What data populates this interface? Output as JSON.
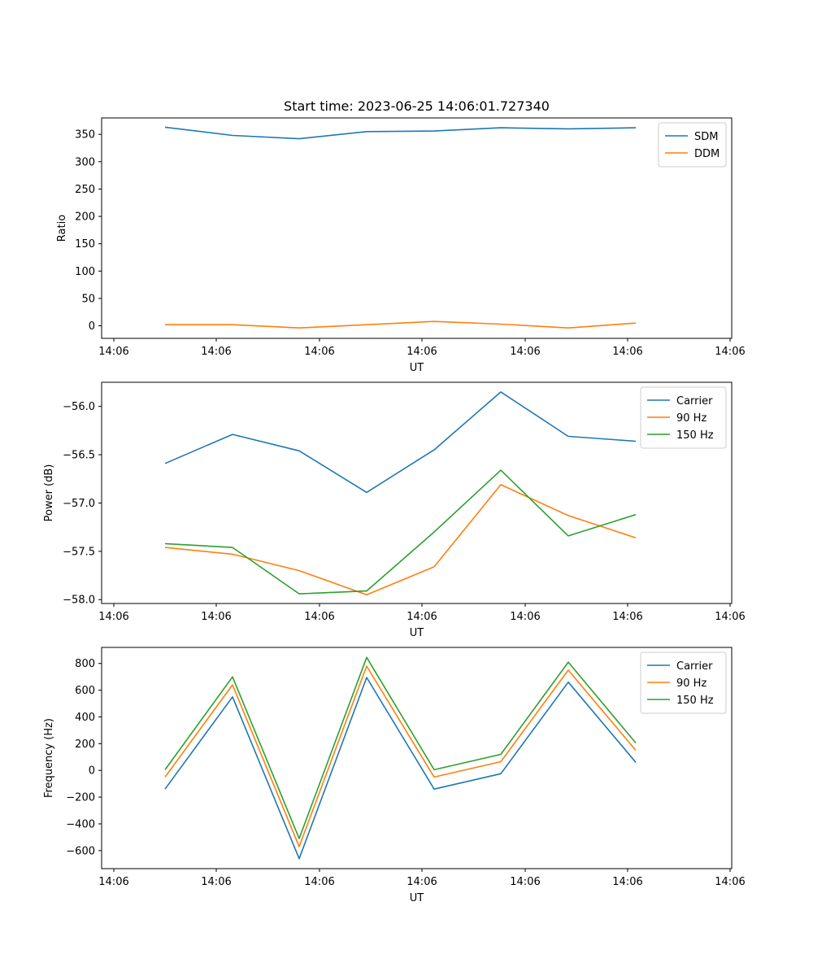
{
  "chart_data": [
    {
      "type": "line",
      "title": "Start time: 2023-06-25 14:06:01.727340",
      "xlabel": "UT",
      "ylabel": "Ratio",
      "x_tick_labels": [
        "14:06",
        "14:06",
        "14:06",
        "14:06",
        "14:06",
        "14:06",
        "14:06"
      ],
      "y_ticks": [
        0,
        50,
        100,
        150,
        200,
        250,
        300,
        350
      ],
      "ylim": [
        -23,
        380
      ],
      "legend_position": "upper right",
      "series": [
        {
          "name": "SDM",
          "color": "#1f77b4",
          "values": [
            363,
            348,
            342,
            355,
            356,
            362,
            360,
            362
          ]
        },
        {
          "name": "DDM",
          "color": "#ff7f0e",
          "values": [
            2,
            2,
            -4,
            2,
            8,
            3,
            -4,
            5
          ]
        }
      ]
    },
    {
      "type": "line",
      "title": "",
      "xlabel": "UT",
      "ylabel": "Power (dB)",
      "x_tick_labels": [
        "14:06",
        "14:06",
        "14:06",
        "14:06",
        "14:06",
        "14:06",
        "14:06"
      ],
      "y_ticks": [
        -58.0,
        -57.5,
        -57.0,
        -56.5,
        -56.0
      ],
      "y_tick_labels": [
        "−58.0",
        "−57.5",
        "−57.0",
        "−56.5",
        "−56.0"
      ],
      "ylim": [
        -58.04,
        -55.75
      ],
      "legend_position": "upper right",
      "series": [
        {
          "name": "Carrier",
          "color": "#1f77b4",
          "values": [
            -56.59,
            -56.29,
            -56.46,
            -56.89,
            -56.45,
            -55.85,
            -56.31,
            -56.36
          ]
        },
        {
          "name": "90 Hz",
          "color": "#ff7f0e",
          "values": [
            -57.46,
            -57.53,
            -57.7,
            -57.95,
            -57.66,
            -56.81,
            -57.13,
            -57.36
          ]
        },
        {
          "name": "150 Hz",
          "color": "#2ca02c",
          "values": [
            -57.42,
            -57.46,
            -57.94,
            -57.91,
            -57.3,
            -56.66,
            -57.34,
            -57.12
          ]
        }
      ]
    },
    {
      "type": "line",
      "title": "",
      "xlabel": "UT",
      "ylabel": "Frequency (Hz)",
      "x_tick_labels": [
        "14:06",
        "14:06",
        "14:06",
        "14:06",
        "14:06",
        "14:06",
        "14:06"
      ],
      "y_ticks": [
        -600,
        -400,
        -200,
        0,
        200,
        400,
        600,
        800
      ],
      "y_tick_labels": [
        "−600",
        "−400",
        "−200",
        "0",
        "200",
        "400",
        "600",
        "800"
      ],
      "ylim": [
        -735,
        920
      ],
      "legend_position": "upper right",
      "series": [
        {
          "name": "Carrier",
          "color": "#1f77b4",
          "values": [
            -140,
            550,
            -660,
            695,
            -140,
            -25,
            660,
            60
          ]
        },
        {
          "name": "90 Hz",
          "color": "#ff7f0e",
          "values": [
            -50,
            640,
            -570,
            780,
            -50,
            65,
            750,
            150
          ]
        },
        {
          "name": "150 Hz",
          "color": "#2ca02c",
          "values": [
            5,
            700,
            -510,
            845,
            5,
            120,
            810,
            205
          ]
        }
      ]
    }
  ]
}
